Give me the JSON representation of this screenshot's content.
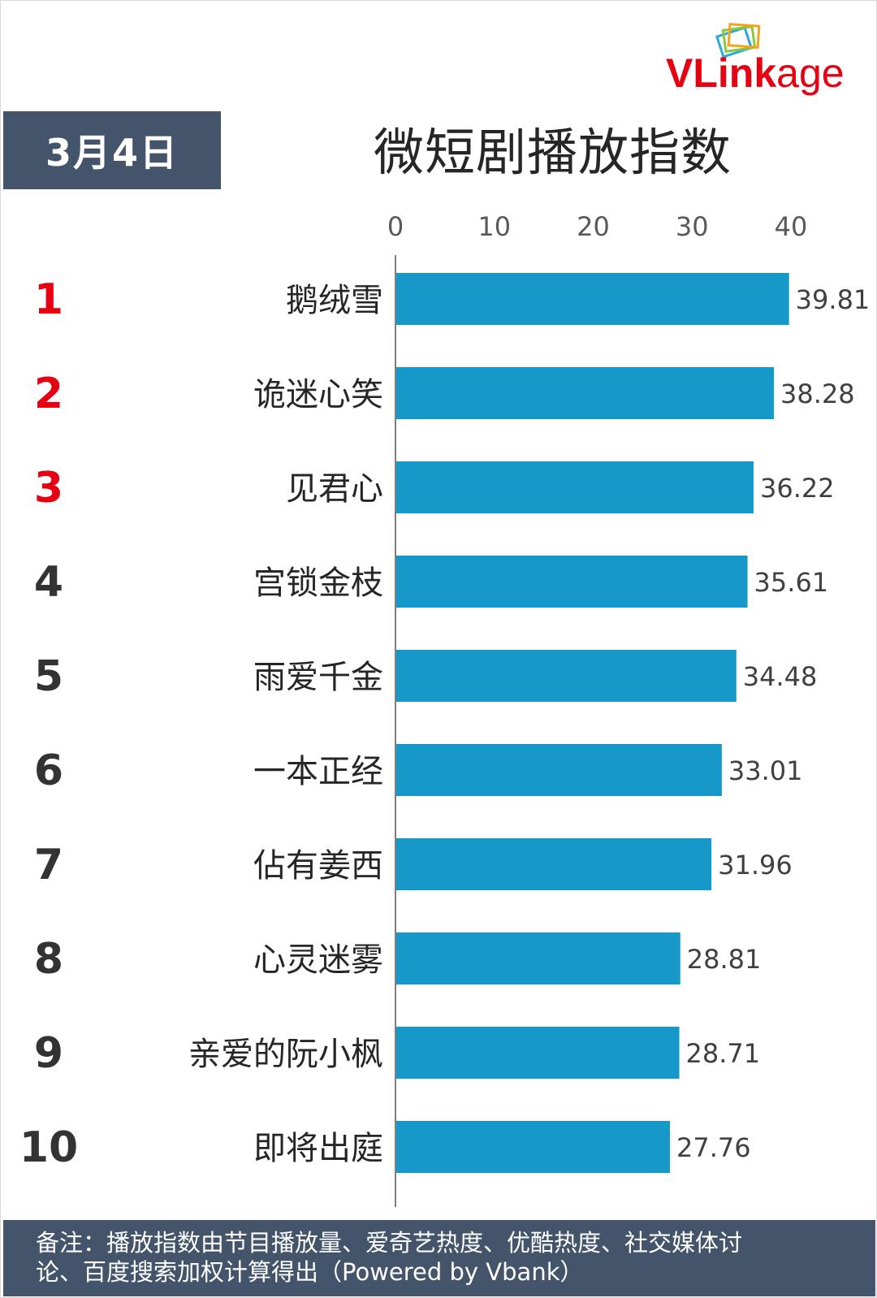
{
  "date_badge": "3月4日",
  "title": "微短剧播放指数",
  "logo": {
    "text_main": "VLink",
    "text_suffix": "age",
    "accent": "#e60012"
  },
  "chart_data": {
    "type": "bar",
    "orientation": "horizontal",
    "title": "微短剧播放指数",
    "categories": [
      "鹅绒雪",
      "诡迷心笑",
      "见君心",
      "宫锁金枝",
      "雨爱千金",
      "一本正经",
      "佔有姜西",
      "心灵迷雾",
      "亲爱的阮小枫",
      "即将出庭"
    ],
    "ranks": [
      "1",
      "2",
      "3",
      "4",
      "5",
      "6",
      "7",
      "8",
      "9",
      "10"
    ],
    "values": [
      39.81,
      38.28,
      36.22,
      35.61,
      34.48,
      33.01,
      31.96,
      28.81,
      28.71,
      27.76
    ],
    "value_labels": [
      "39.81",
      "38.28",
      "36.22",
      "35.61",
      "34.48",
      "33.01",
      "31.96",
      "28.81",
      "28.71",
      "27.76"
    ],
    "xlim": [
      0,
      40
    ],
    "ticks": [
      0,
      10,
      20,
      30,
      40
    ],
    "tick_labels": [
      "0",
      "10",
      "20",
      "30",
      "40"
    ],
    "axis_position": "top",
    "grid": false,
    "bar_color": "#1699c8",
    "top_rank_color": "#e60012",
    "rank_color": "#333333"
  },
  "footer": {
    "line1": "备注：播放指数由节目播放量、爱奇艺热度、优酷热度、社交媒体讨",
    "line2": "论、百度搜索加权计算得出（Powered by Vbank）"
  },
  "colors": {
    "header_bg": "#44546a",
    "bar": "#1699c8",
    "accent_red": "#e60012"
  }
}
